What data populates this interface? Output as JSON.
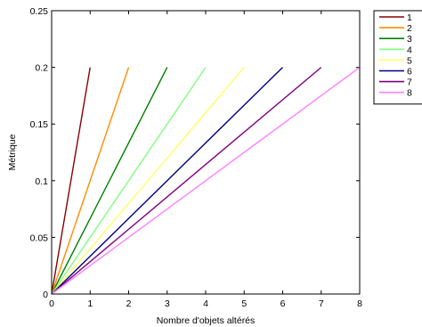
{
  "chart_data": {
    "type": "line",
    "title": "",
    "xlabel": "Nombre d'objets altérés",
    "ylabel": "Métrique",
    "xlim": [
      0,
      8
    ],
    "ylim": [
      0,
      0.25
    ],
    "xticks": [
      "0",
      "1",
      "2",
      "3",
      "4",
      "5",
      "6",
      "7",
      "8"
    ],
    "yticks": [
      "0",
      "0.05",
      "0.1",
      "0.15",
      "0.2",
      "0.25"
    ],
    "grid": false,
    "legend_position": "top-right",
    "series": [
      {
        "name": "1",
        "color": "#8b0000",
        "x": [
          0,
          1
        ],
        "y": [
          0,
          0.2
        ]
      },
      {
        "name": "2",
        "color": "#ff8c00",
        "x": [
          0,
          2
        ],
        "y": [
          0,
          0.2
        ]
      },
      {
        "name": "3",
        "color": "#008000",
        "x": [
          0,
          3
        ],
        "y": [
          0,
          0.2
        ]
      },
      {
        "name": "4",
        "color": "#80ff80",
        "x": [
          0,
          4
        ],
        "y": [
          0,
          0.2
        ]
      },
      {
        "name": "5",
        "color": "#ffff66",
        "x": [
          0,
          5
        ],
        "y": [
          0,
          0.2
        ]
      },
      {
        "name": "6",
        "color": "#000080",
        "x": [
          0,
          6
        ],
        "y": [
          0,
          0.2
        ]
      },
      {
        "name": "7",
        "color": "#800080",
        "x": [
          0,
          7
        ],
        "y": [
          0,
          0.2
        ]
      },
      {
        "name": "8",
        "color": "#ff80ff",
        "x": [
          0,
          8
        ],
        "y": [
          0,
          0.2
        ]
      }
    ]
  }
}
